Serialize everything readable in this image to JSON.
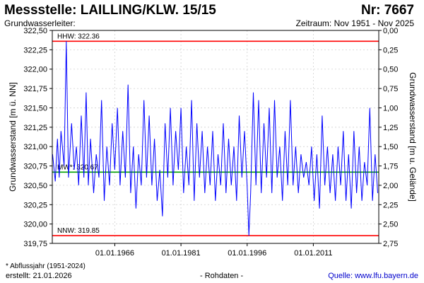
{
  "header": {
    "title": "Messstelle: LAILLING/KLW. 15/15",
    "nr": "Nr: 7667",
    "aquifer": "Grundwasserleiter:",
    "period": "Zeitraum: Nov 1951 - Nov 2025"
  },
  "footer": {
    "footnote": "* Abflussjahr (1951-2024)",
    "created": "erstellt:  21.01.2026",
    "rohdaten": "- Rohdaten -",
    "source": "Quelle: www.lfu.bayern.de"
  },
  "colors": {
    "series": "#0000ff",
    "extreme_line": "#ff0000",
    "mean_line": "#00a000",
    "grid": "#d0d0d0"
  },
  "chart_data": {
    "type": "line",
    "ylabel": "Grundwasserstand [m ü. NN]",
    "y2label": "Grundwasserstand [m u. Gelände]",
    "xlim": [
      "1951-11-01",
      "2025-11-01"
    ],
    "ylim": [
      319.75,
      322.5
    ],
    "y2lim": [
      2.75,
      0.0
    ],
    "grid": true,
    "yticks": [
      "322,50",
      "322,25",
      "322,00",
      "321,75",
      "321,50",
      "321,25",
      "321,00",
      "320,75",
      "320,50",
      "320,25",
      "320,00",
      "319,75"
    ],
    "y2ticks": [
      "0,00",
      "0,25",
      "0,50",
      "0,75",
      "1,00",
      "1,25",
      "1,50",
      "1,75",
      "2,00",
      "2,25",
      "2,50",
      "2,75"
    ],
    "xticks": [
      "01.01.1966",
      "01.01.1981",
      "01.01.1996",
      "01.01.2011"
    ],
    "reference_lines": [
      {
        "label": "HHW: 322.36",
        "value": 322.36,
        "kind": "extreme"
      },
      {
        "label": "MW*: 320.67",
        "value": 320.67,
        "kind": "mean"
      },
      {
        "label": "NNW: 319.85",
        "value": 319.85,
        "kind": "extreme"
      }
    ],
    "series": [
      {
        "x": [
          1951.9,
          1952.5,
          1953.0,
          1953.4,
          1953.8,
          1954.5,
          1955.0,
          1955.5,
          1956.2,
          1956.8,
          1957.3,
          1957.8,
          1958.4,
          1959.0,
          1959.5,
          1960.0,
          1960.5,
          1961.2,
          1961.8,
          1962.4,
          1963.0,
          1963.6,
          1964.2,
          1964.8,
          1965.4,
          1966.0,
          1966.6,
          1967.2,
          1967.8,
          1968.4,
          1969.0,
          1969.6,
          1970.2,
          1970.8,
          1971.4,
          1972.0,
          1972.6,
          1973.2,
          1973.8,
          1974.4,
          1975.0,
          1975.6,
          1976.2,
          1976.8,
          1977.4,
          1978.0,
          1978.6,
          1979.2,
          1979.8,
          1980.4,
          1981.0,
          1981.6,
          1982.2,
          1982.8,
          1983.4,
          1984.0,
          1984.6,
          1985.2,
          1985.8,
          1986.4,
          1987.0,
          1987.6,
          1988.2,
          1988.8,
          1989.4,
          1990.0,
          1990.6,
          1991.2,
          1991.8,
          1992.4,
          1993.0,
          1993.6,
          1994.2,
          1994.8,
          1995.4,
          1996.0,
          1996.4,
          1996.8,
          1997.4,
          1998.0,
          1998.6,
          1999.2,
          1999.8,
          2000.4,
          2001.0,
          2001.6,
          2002.2,
          2002.8,
          2003.4,
          2004.0,
          2004.6,
          2005.2,
          2005.8,
          2006.4,
          2007.0,
          2007.6,
          2008.2,
          2008.8,
          2009.4,
          2010.0,
          2010.6,
          2011.2,
          2011.8,
          2012.4,
          2013.0,
          2013.6,
          2014.2,
          2014.8,
          2015.4,
          2016.0,
          2016.6,
          2017.2,
          2017.8,
          2018.4,
          2019.0,
          2019.6,
          2020.2,
          2020.8,
          2021.4,
          2022.0,
          2022.6,
          2023.2,
          2023.8,
          2024.4,
          2025.0,
          2025.6
        ],
        "y": [
          320.9,
          320.55,
          321.1,
          320.6,
          321.2,
          320.75,
          322.36,
          320.6,
          321.3,
          320.7,
          321.0,
          320.5,
          321.4,
          320.6,
          321.7,
          320.5,
          321.1,
          320.4,
          320.9,
          320.6,
          321.6,
          320.3,
          321.0,
          320.5,
          321.3,
          320.7,
          321.5,
          320.5,
          321.2,
          320.6,
          321.8,
          320.4,
          321.0,
          320.2,
          320.9,
          320.5,
          321.6,
          320.6,
          321.4,
          320.5,
          321.1,
          320.3,
          320.7,
          320.1,
          321.3,
          320.6,
          321.5,
          320.5,
          321.2,
          320.7,
          321.5,
          320.4,
          321.0,
          320.5,
          321.6,
          320.3,
          321.3,
          320.6,
          321.2,
          320.4,
          321.0,
          320.5,
          321.2,
          320.3,
          320.9,
          320.5,
          321.3,
          320.4,
          321.1,
          320.5,
          321.0,
          320.3,
          321.4,
          320.6,
          321.2,
          320.5,
          319.85,
          320.4,
          321.7,
          320.5,
          321.6,
          320.4,
          321.3,
          320.6,
          321.5,
          320.4,
          321.6,
          320.6,
          321.0,
          320.3,
          321.2,
          320.5,
          321.6,
          320.5,
          321.0,
          320.4,
          320.9,
          320.6,
          320.8,
          320.5,
          321.0,
          320.3,
          320.9,
          320.2,
          321.4,
          320.5,
          321.0,
          320.4,
          320.9,
          320.3,
          321.0,
          320.5,
          321.2,
          320.3,
          320.9,
          320.2,
          321.2,
          320.4,
          321.0,
          320.3,
          320.8,
          320.5,
          321.5,
          320.3,
          320.9,
          320.4
        ]
      }
    ]
  }
}
